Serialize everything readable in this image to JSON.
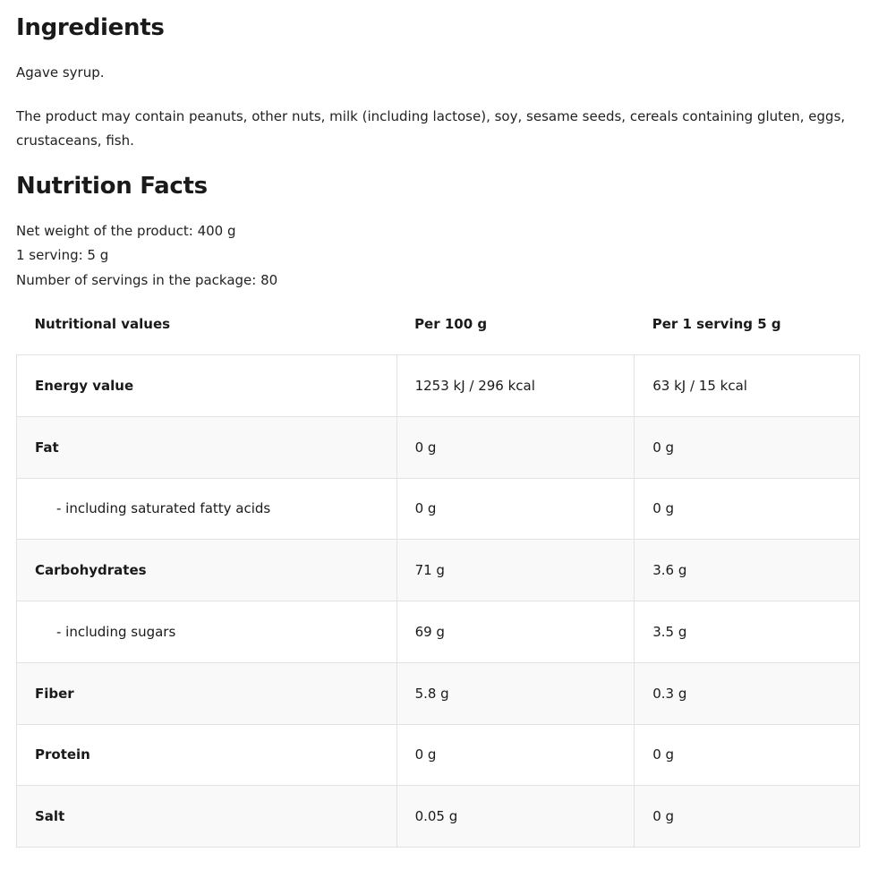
{
  "ingredients": {
    "title": "Ingredients",
    "text": "Agave syrup.",
    "allergens": "The product may contain peanuts, other nuts, milk (including lactose), soy, sesame seeds, cereals containing gluten, eggs, crustaceans, fish."
  },
  "nutrition": {
    "title": "Nutrition Facts",
    "net_weight": "Net weight of the product: 400 g",
    "serving": "1 serving: 5 g",
    "servings_count": "Number of servings in the package: 80",
    "headers": [
      "Nutritional values",
      "Per 100 g",
      "Per 1 serving 5 g"
    ],
    "rows": [
      {
        "name": "Energy value",
        "per100": "1253 kJ / 296 kcal",
        "serving": "63 kJ / 15 kcal"
      },
      {
        "name": "Fat",
        "per100": "0 g",
        "serving": "0 g"
      },
      {
        "name": "- including saturated fatty acids",
        "per100": "0 g",
        "serving": "0 g"
      },
      {
        "name": "Carbohydrates",
        "per100": "71 g",
        "serving": "3.6 g"
      },
      {
        "name": "- including sugars",
        "per100": "69 g",
        "serving": "3.5 g"
      },
      {
        "name": "Fiber",
        "per100": "5.8 g",
        "serving": "0.3 g"
      },
      {
        "name": "Protein",
        "per100": "0 g",
        "serving": "0 g"
      },
      {
        "name": "Salt",
        "per100": "0.05 g",
        "serving": "0 g"
      }
    ]
  }
}
